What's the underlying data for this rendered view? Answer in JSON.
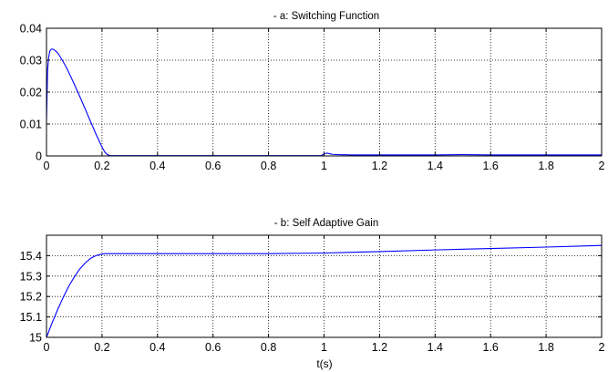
{
  "chart_data": [
    {
      "type": "line",
      "title": "- a: Switching Function",
      "xlabel": "",
      "ylabel": "",
      "xlim": [
        0,
        2
      ],
      "ylim": [
        0,
        0.04
      ],
      "xticks": [
        0,
        0.2,
        0.4,
        0.6,
        0.8,
        1,
        1.2,
        1.4,
        1.6,
        1.8,
        2
      ],
      "xtick_labels": [
        "0",
        "0.2",
        "0.4",
        "0.6",
        "0.8",
        "1",
        "1.2",
        "1.4",
        "1.6",
        "1.8",
        "2"
      ],
      "yticks": [
        0,
        0.01,
        0.02,
        0.03,
        0.04
      ],
      "ytick_labels": [
        "0",
        "0.01",
        "0.02",
        "0.03",
        "0.04"
      ],
      "grid": true,
      "grid_style": "dotted",
      "series_color": "#0000ff",
      "series": [
        {
          "x": [
            0,
            0.004,
            0.008,
            0.012,
            0.016,
            0.02,
            0.025,
            0.03,
            0.035,
            0.04,
            0.05,
            0.06,
            0.07,
            0.08,
            0.1,
            0.12,
            0.14,
            0.16,
            0.18,
            0.2,
            0.21,
            0.22,
            0.23,
            0.25,
            0.3,
            0.4,
            0.6,
            0.8,
            0.99,
            1.0,
            1.01,
            1.02,
            1.03,
            1.05,
            1.1,
            1.2,
            1.4,
            1.5,
            1.6,
            1.8,
            2.0
          ],
          "y": [
            0.011,
            0.027,
            0.031,
            0.0328,
            0.0334,
            0.0335,
            0.0334,
            0.0331,
            0.0327,
            0.0323,
            0.031,
            0.0295,
            0.028,
            0.0262,
            0.0225,
            0.0186,
            0.0146,
            0.0105,
            0.0065,
            0.0028,
            0.0012,
            0.0004,
            0.0001,
            0.0001,
            0.0001,
            0.0001,
            0.0001,
            0.0001,
            0.0001,
            0.0006,
            0.0009,
            0.0007,
            0.0005,
            0.0004,
            0.0003,
            0.0003,
            0.0003,
            0.0004,
            0.0003,
            0.0003,
            0.0003
          ]
        }
      ]
    },
    {
      "type": "line",
      "title": "- b: Self Adaptive Gain",
      "xlabel": "t(s)",
      "ylabel": "",
      "xlim": [
        0,
        2
      ],
      "ylim": [
        15,
        15.5
      ],
      "xticks": [
        0,
        0.2,
        0.4,
        0.6,
        0.8,
        1,
        1.2,
        1.4,
        1.6,
        1.8,
        2
      ],
      "xtick_labels": [
        "0",
        "0.2",
        "0.4",
        "0.6",
        "0.8",
        "1",
        "1.2",
        "1.4",
        "1.6",
        "1.8",
        "2"
      ],
      "yticks": [
        15,
        15.1,
        15.2,
        15.3,
        15.4
      ],
      "ytick_labels": [
        "15",
        "15.1",
        "15.2",
        "15.3",
        "15.4"
      ],
      "grid": true,
      "grid_style": "dotted",
      "series_color": "#0000ff",
      "series": [
        {
          "x": [
            0,
            0.02,
            0.04,
            0.06,
            0.08,
            0.1,
            0.12,
            0.14,
            0.16,
            0.18,
            0.2,
            0.21,
            0.22,
            0.3,
            0.5,
            0.8,
            1.0,
            1.2,
            1.4,
            1.6,
            1.8,
            2.0
          ],
          "y": [
            15.0,
            15.07,
            15.135,
            15.195,
            15.25,
            15.295,
            15.335,
            15.365,
            15.388,
            15.401,
            15.408,
            15.41,
            15.41,
            15.41,
            15.41,
            15.41,
            15.413,
            15.42,
            15.428,
            15.435,
            15.442,
            15.45
          ]
        }
      ]
    }
  ]
}
